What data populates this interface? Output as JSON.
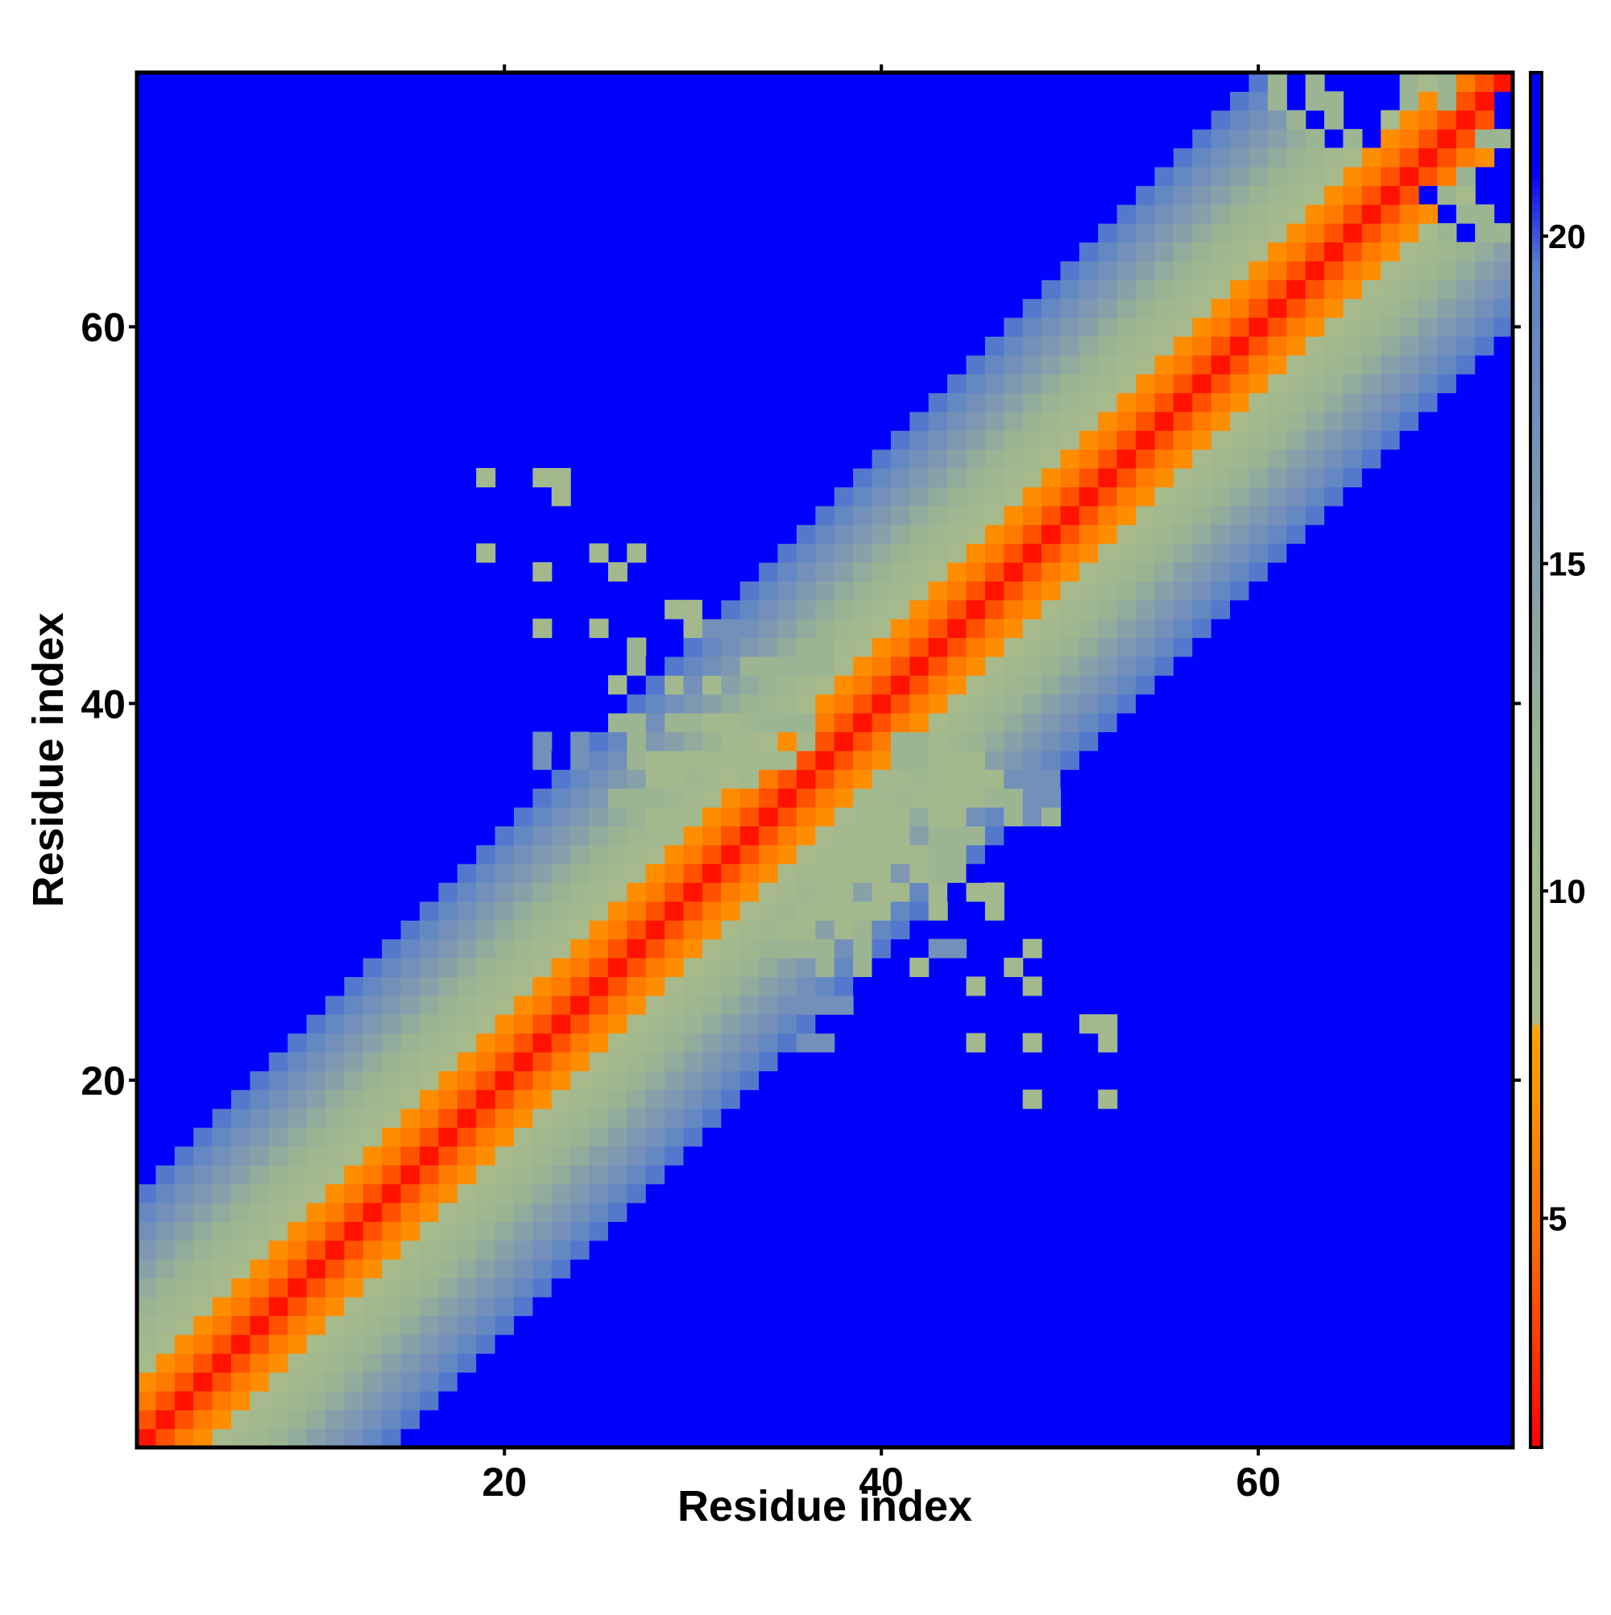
{
  "chart_data": {
    "type": "heatmap",
    "xlabel": "Residue index",
    "ylabel": "Residue index",
    "n": 73,
    "xlim": [
      0.5,
      73.5
    ],
    "ylim": [
      0.5,
      73.5
    ],
    "x_ticks": [
      20,
      40,
      60
    ],
    "y_ticks": [
      20,
      40,
      60
    ],
    "colorbar": {
      "min": 1.5,
      "max": 22.5,
      "ticks": [
        5,
        10,
        15,
        20
      ],
      "stops": [
        {
          "value": 1.5,
          "color": "#ff0000"
        },
        {
          "value": 4.5,
          "color": "#ff6a00"
        },
        {
          "value": 7.9,
          "color": "#ffa500"
        },
        {
          "value": 8.0,
          "color": "#a8bb8a"
        },
        {
          "value": 12.0,
          "color": "#9bb592"
        },
        {
          "value": 16.0,
          "color": "#7d96b4"
        },
        {
          "value": 19.5,
          "color": "#5a82c8"
        },
        {
          "value": 21.0,
          "color": "#0000ff"
        }
      ]
    },
    "band_distances": [
      3.8,
      5.5,
      6.5,
      8.4,
      9.6,
      10.8,
      12.1,
      13.3,
      14.6,
      15.8,
      17.0,
      18.4,
      19.6,
      21.0
    ],
    "off_diagonal_contacts": [
      [
        19,
        52,
        9.5
      ],
      [
        22,
        52,
        9.5
      ],
      [
        23,
        52,
        9.5
      ],
      [
        23,
        51,
        9.5
      ],
      [
        19,
        48,
        9.5
      ],
      [
        22,
        47,
        9.5
      ],
      [
        25,
        48,
        9.5
      ],
      [
        26,
        47,
        9.5
      ],
      [
        27,
        48,
        9.5
      ],
      [
        22,
        44,
        9.5
      ],
      [
        25,
        44,
        9.5
      ],
      [
        29,
        45,
        9.5
      ],
      [
        30,
        45,
        9.5
      ],
      [
        30,
        44,
        9.5
      ],
      [
        31,
        44,
        17.0
      ],
      [
        32,
        44,
        17.0
      ],
      [
        27,
        43,
        12.0
      ],
      [
        27,
        42,
        12.0
      ],
      [
        26,
        41,
        9.5
      ],
      [
        29,
        41,
        9.5
      ],
      [
        31,
        41,
        9.5
      ],
      [
        33,
        42,
        12.0
      ],
      [
        34,
        42,
        12.0
      ],
      [
        36,
        42,
        12.0
      ],
      [
        37,
        42,
        12.0
      ],
      [
        37,
        43,
        12.0
      ],
      [
        26,
        39,
        12.0
      ],
      [
        27,
        39,
        12.0
      ],
      [
        29,
        39,
        12.0
      ],
      [
        30,
        39,
        12.0
      ],
      [
        31,
        39,
        9.5
      ],
      [
        32,
        39,
        9.5
      ],
      [
        34,
        39,
        12.0
      ],
      [
        35,
        39,
        12.0
      ],
      [
        36,
        39,
        12.0
      ],
      [
        22,
        38,
        17.0
      ],
      [
        22,
        37,
        17.0
      ],
      [
        24,
        38,
        17.0
      ],
      [
        24,
        37,
        17.0
      ],
      [
        27,
        38,
        12.0
      ],
      [
        27,
        37,
        12.0
      ],
      [
        28,
        37,
        9.5
      ],
      [
        29,
        37,
        9.5
      ],
      [
        30,
        37,
        9.5
      ],
      [
        31,
        37,
        9.5
      ],
      [
        32,
        37,
        9.5
      ],
      [
        32,
        38,
        9.5
      ],
      [
        33,
        37,
        9.5
      ],
      [
        34,
        37,
        9.5
      ],
      [
        35,
        37,
        9.5
      ],
      [
        36,
        38,
        9.5
      ],
      [
        28,
        36,
        9.5
      ],
      [
        29,
        36,
        9.5
      ],
      [
        31,
        36,
        9.5
      ],
      [
        33,
        36,
        9.5
      ],
      [
        26,
        35,
        12.0
      ],
      [
        27,
        35,
        12.0
      ],
      [
        30,
        35,
        9.5
      ],
      [
        28,
        34,
        9.5
      ],
      [
        30,
        34,
        9.5
      ],
      [
        28,
        33,
        9.5
      ],
      [
        29,
        33,
        9.5
      ],
      [
        41,
        37,
        12.0
      ],
      [
        42,
        37,
        12.0
      ],
      [
        43,
        37,
        9.5
      ],
      [
        44,
        37,
        9.5
      ],
      [
        45,
        37,
        9.5
      ],
      [
        41,
        38,
        12.0
      ],
      [
        42,
        38,
        12.0
      ],
      [
        40,
        36,
        9.5
      ],
      [
        41,
        36,
        9.5
      ],
      [
        43,
        36,
        9.5
      ],
      [
        44,
        36,
        9.5
      ],
      [
        45,
        36,
        9.5
      ],
      [
        46,
        36,
        9.5
      ],
      [
        48,
        36,
        17.0
      ],
      [
        49,
        36,
        17.0
      ],
      [
        39,
        35,
        9.5
      ],
      [
        40,
        35,
        9.5
      ],
      [
        42,
        35,
        9.5
      ],
      [
        43,
        35,
        9.5
      ],
      [
        44,
        35,
        9.5
      ],
      [
        45,
        35,
        9.5
      ],
      [
        46,
        35,
        12.0
      ],
      [
        47,
        35,
        12.0
      ],
      [
        48,
        35,
        17.0
      ],
      [
        49,
        35,
        17.0
      ],
      [
        39,
        34,
        9.5
      ],
      [
        40,
        34,
        9.5
      ],
      [
        41,
        34,
        9.5
      ],
      [
        43,
        34,
        9.5
      ],
      [
        44,
        34,
        9.5
      ],
      [
        47,
        34,
        12.0
      ],
      [
        48,
        34,
        17.0
      ],
      [
        49,
        34,
        12.0
      ],
      [
        38,
        33,
        9.5
      ],
      [
        39,
        33,
        9.5
      ],
      [
        40,
        33,
        9.5
      ],
      [
        41,
        33,
        9.5
      ],
      [
        43,
        33,
        12.0
      ],
      [
        44,
        33,
        12.0
      ],
      [
        45,
        33,
        12.0
      ],
      [
        38,
        32,
        9.5
      ],
      [
        39,
        32,
        9.5
      ],
      [
        40,
        32,
        9.5
      ],
      [
        41,
        32,
        9.5
      ],
      [
        42,
        32,
        9.5
      ],
      [
        43,
        32,
        12.0
      ],
      [
        44,
        32,
        12.0
      ],
      [
        37,
        31,
        9.5
      ],
      [
        38,
        31,
        9.5
      ],
      [
        39,
        31,
        9.5
      ],
      [
        40,
        31,
        9.5
      ],
      [
        42,
        31,
        9.5
      ],
      [
        43,
        31,
        12.0
      ],
      [
        44,
        31,
        12.0
      ],
      [
        37,
        30,
        9.5
      ],
      [
        38,
        30,
        9.5
      ],
      [
        40,
        30,
        9.5
      ],
      [
        41,
        30,
        9.5
      ],
      [
        43,
        30,
        9.5
      ],
      [
        45,
        30,
        9.5
      ],
      [
        46,
        30,
        9.5
      ],
      [
        36,
        29,
        9.5
      ],
      [
        37,
        29,
        9.5
      ],
      [
        38,
        29,
        9.5
      ],
      [
        39,
        29,
        9.5
      ],
      [
        40,
        29,
        9.5
      ],
      [
        43,
        29,
        9.5
      ],
      [
        46,
        29,
        9.5
      ],
      [
        35,
        28,
        9.5
      ],
      [
        36,
        28,
        9.5
      ],
      [
        38,
        28,
        9.5
      ],
      [
        39,
        28,
        12.0
      ],
      [
        35,
        27,
        12.0
      ],
      [
        36,
        27,
        12.0
      ],
      [
        37,
        27,
        12.0
      ],
      [
        39,
        27,
        12.0
      ],
      [
        43,
        27,
        17.0
      ],
      [
        44,
        27,
        17.0
      ],
      [
        48,
        27,
        9.5
      ],
      [
        37,
        26,
        12.0
      ],
      [
        39,
        26,
        12.0
      ],
      [
        42,
        26,
        9.5
      ],
      [
        47,
        26,
        9.5
      ],
      [
        45,
        25,
        9.5
      ],
      [
        48,
        25,
        9.5
      ],
      [
        36,
        24,
        17.0
      ],
      [
        37,
        24,
        17.0
      ],
      [
        38,
        24,
        17.0
      ],
      [
        36,
        22,
        17.0
      ],
      [
        37,
        22,
        17.0
      ],
      [
        45,
        22,
        9.5
      ],
      [
        48,
        22,
        9.5
      ],
      [
        51,
        23,
        9.5
      ],
      [
        52,
        23,
        9.5
      ],
      [
        52,
        22,
        9.5
      ],
      [
        48,
        19,
        9.5
      ],
      [
        52,
        19,
        9.5
      ],
      [
        61,
        73,
        12.0
      ],
      [
        61,
        72,
        12.0
      ],
      [
        62,
        71,
        12.0
      ],
      [
        63,
        72,
        12.0
      ],
      [
        63,
        73,
        12.0
      ],
      [
        64,
        71,
        12.0
      ],
      [
        64,
        72,
        12.0
      ],
      [
        63,
        70,
        12.0
      ],
      [
        65,
        70,
        12.0
      ],
      [
        68,
        73,
        12.0
      ],
      [
        68,
        72,
        12.0
      ],
      [
        70,
        73,
        12.0
      ],
      [
        70,
        72,
        12.0
      ],
      [
        72,
        70,
        12.0
      ],
      [
        73,
        70,
        12.0
      ],
      [
        71,
        68,
        12.0
      ],
      [
        70,
        67,
        12.0
      ],
      [
        71,
        66,
        12.0
      ],
      [
        72,
        66,
        12.0
      ],
      [
        72,
        65,
        12.0
      ],
      [
        73,
        65,
        12.0
      ],
      [
        70,
        65,
        12.0
      ]
    ],
    "off_diagonal_voids": [
      [
        62,
        73
      ],
      [
        64,
        73
      ],
      [
        65,
        73
      ],
      [
        66,
        73
      ],
      [
        67,
        73
      ],
      [
        62,
        72
      ],
      [
        65,
        72
      ],
      [
        66,
        72
      ],
      [
        67,
        72
      ],
      [
        63,
        71
      ],
      [
        65,
        71
      ],
      [
        66,
        71
      ],
      [
        64,
        70
      ],
      [
        66,
        70
      ],
      [
        73,
        71
      ],
      [
        73,
        72
      ],
      [
        73,
        69
      ],
      [
        73,
        68
      ],
      [
        73,
        67
      ],
      [
        72,
        68
      ],
      [
        72,
        67
      ],
      [
        69,
        67
      ],
      [
        71,
        65
      ],
      [
        70,
        66
      ],
      [
        73,
        66
      ]
    ]
  }
}
